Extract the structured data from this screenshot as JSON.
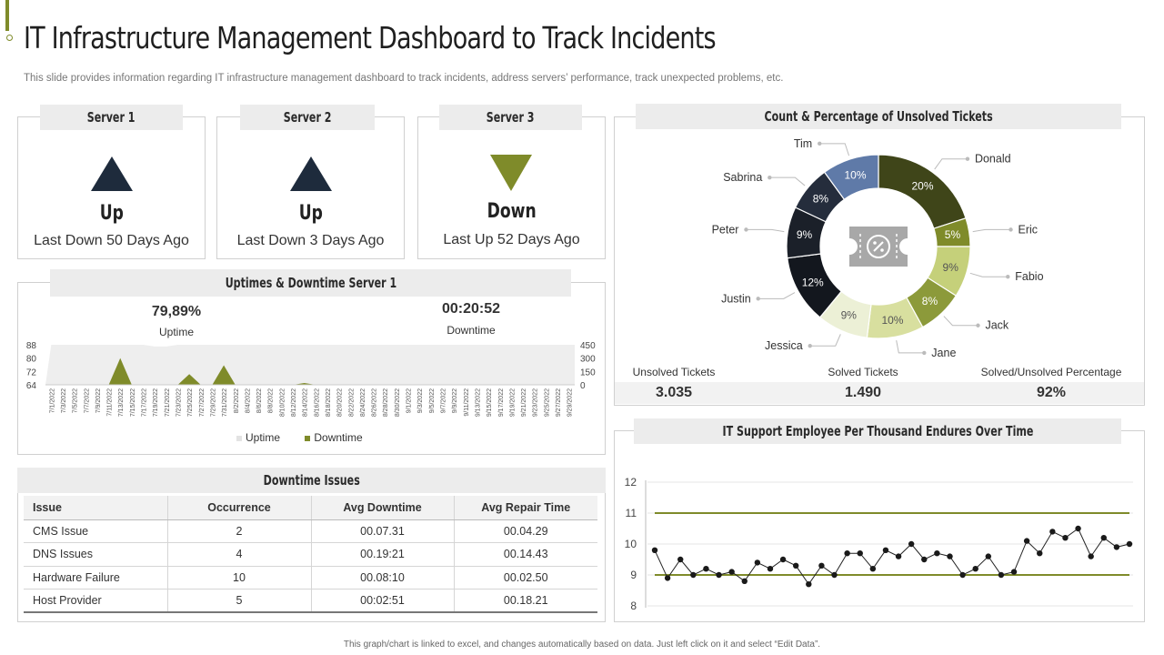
{
  "header": {
    "title": "IT Infrastructure Management Dashboard to Track Incidents",
    "subtitle": "This slide provides information regarding IT infrastructure management dashboard to track incidents, address servers’ performance, track unexpected problems, etc."
  },
  "servers": [
    {
      "name": "Server 1",
      "status": "Up",
      "last": "Last Down 50 Days Ago",
      "arrow": "up-triangle-icon",
      "color": "#1e2b3c"
    },
    {
      "name": "Server 2",
      "status": "Up",
      "last": "Last Down 3 Days Ago",
      "arrow": "up-triangle-icon",
      "color": "#1e2b3c"
    },
    {
      "name": "Server 3",
      "status": "Down",
      "last": "Last Up 52 Days Ago",
      "arrow": "down-triangle-icon",
      "color": "#7f8b2a"
    }
  ],
  "uptime_panel": {
    "title": "Uptimes & Downtime Server 1",
    "uptime_value": "79,89%",
    "uptime_label": "Uptime",
    "downtime_value": "00:20:52",
    "downtime_label": "Downtime",
    "legend_uptime": "Uptime",
    "legend_downtime": "Downtime"
  },
  "issues_panel": {
    "title": "Downtime Issues",
    "columns": [
      "Issue",
      "Occurrence",
      "Avg Downtime",
      "Avg Repair Time"
    ],
    "rows": [
      [
        "CMS Issue",
        "2",
        "00.07.31",
        "00.04.29"
      ],
      [
        "DNS Issues",
        "4",
        "00.19:21",
        "00.14.43"
      ],
      [
        "Hardware  Failure",
        "10",
        "00.08:10",
        "00.02.50"
      ],
      [
        "Host Provider",
        "5",
        "00:02:51",
        "00.18.21"
      ]
    ]
  },
  "tickets_panel": {
    "title": "Count & Percentage  of Unsolved Tickets",
    "unsolved_label": "Unsolved Tickets",
    "unsolved_value": "3.035",
    "solved_label": "Solved Tickets",
    "solved_value": "1.490",
    "ratio_label": "Solved/Unsolved  Percentage",
    "ratio_value": "92%",
    "center_icon": "ticket-percent-icon"
  },
  "support_panel": {
    "title": "IT Support  Employee  Per Thousand  Endures  Over Time"
  },
  "footnote": "This graph/chart is linked to excel, and changes automatically based on data. Just left click on it and select “Edit Data”.",
  "colors": {
    "accent": "#7f8b2a",
    "navy": "#1e2b3c",
    "tab_bg": "#ececec"
  },
  "chart_data": [
    {
      "type": "area",
      "name": "uptime-downtime-server-1",
      "title": "Uptimes & Downtime Server 1",
      "categories": [
        "7/1/2022",
        "7/3/2022",
        "7/5/2022",
        "7/7/2022",
        "7/9/2022",
        "7/11/2022",
        "7/13/2022",
        "7/15/2022",
        "7/17/2022",
        "7/19/2022",
        "7/21/2022",
        "7/23/2022",
        "7/25/2022",
        "7/27/2022",
        "7/29/2022",
        "7/31/2022",
        "8/2/2022",
        "8/4/2022",
        "8/6/2022",
        "8/8/2022",
        "8/10/2022",
        "8/12/2022",
        "8/14/2022",
        "8/16/2022",
        "8/18/2022",
        "8/20/2022",
        "8/22/2022",
        "8/24/2022",
        "8/26/2022",
        "8/28/2022",
        "8/30/2022",
        "9/1/2022",
        "9/3/2022",
        "9/5/2022",
        "9/7/2022",
        "9/9/2022",
        "9/11/2022",
        "9/13/2022",
        "9/15/2022",
        "9/17/2022",
        "9/19/2022",
        "9/21/2022",
        "9/23/2022",
        "9/25/2022",
        "9/27/2022",
        "9/29/2022"
      ],
      "y_left_ticks": [
        64,
        72,
        80,
        88
      ],
      "y_right_ticks": [
        0,
        150,
        300,
        450
      ],
      "series": [
        {
          "name": "Uptime",
          "axis": "left",
          "color": "#eeeeee",
          "values": [
            88,
            88,
            88,
            88,
            88,
            88,
            88,
            88,
            88,
            87,
            87,
            88,
            88,
            88,
            88,
            88,
            88,
            88,
            88,
            88,
            88,
            88,
            88,
            88,
            88,
            88,
            88,
            88,
            88,
            88,
            88,
            88,
            88,
            88,
            88,
            88,
            88,
            88,
            88,
            88,
            88,
            88,
            88,
            88,
            88,
            88
          ]
        },
        {
          "name": "Downtime",
          "axis": "right",
          "color": "#7f8b2a",
          "values": [
            0,
            0,
            0,
            0,
            0,
            0,
            300,
            0,
            0,
            0,
            0,
            0,
            120,
            0,
            0,
            220,
            0,
            0,
            0,
            0,
            0,
            0,
            20,
            0,
            0,
            0,
            0,
            0,
            0,
            0,
            0,
            0,
            0,
            0,
            0,
            0,
            0,
            0,
            0,
            0,
            0,
            0,
            0,
            0,
            0,
            0
          ]
        }
      ]
    },
    {
      "type": "pie",
      "name": "unsolved-tickets-donut",
      "title": "Count & Percentage  of Unsolved Tickets",
      "slices": [
        {
          "label": "Donald",
          "value": 20,
          "text": "20%",
          "color": "#3f4519"
        },
        {
          "label": "Eric",
          "value": 5,
          "text": "5%",
          "color": "#7f8b2a"
        },
        {
          "label": "Fabio",
          "value": 9,
          "text": "9%",
          "color": "#c5d07a"
        },
        {
          "label": "Jack",
          "value": 8,
          "text": "8%",
          "color": "#8c9a3a"
        },
        {
          "label": "Jane",
          "value": 10,
          "text": "10%",
          "color": "#d8df9f"
        },
        {
          "label": "Jessica",
          "value": 9,
          "text": "9%",
          "color": "#ecf0d6"
        },
        {
          "label": "Justin",
          "value": 12,
          "text": "12%",
          "color": "#13171e"
        },
        {
          "label": "Peter",
          "value": 9,
          "text": "9%",
          "color": "#1b2029"
        },
        {
          "label": "Sabrina",
          "value": 8,
          "text": "8%",
          "color": "#252d3c"
        },
        {
          "label": "Tim",
          "value": 10,
          "text": "10%",
          "color": "#5f7aa8"
        }
      ]
    },
    {
      "type": "line",
      "name": "it-support-per-thousand",
      "title": "IT Support  Employee  Per Thousand  Endures  Over Time",
      "ylim": [
        8,
        12
      ],
      "y_ticks": [
        8,
        9,
        10,
        11,
        12
      ],
      "reference_lines": [
        11,
        9
      ],
      "series": [
        {
          "name": "",
          "color": "#222222",
          "values": [
            9.8,
            8.9,
            9.5,
            9.0,
            9.2,
            9.0,
            9.1,
            8.8,
            9.4,
            9.2,
            9.5,
            9.3,
            8.7,
            9.3,
            9.0,
            9.7,
            9.7,
            9.2,
            9.8,
            9.6,
            10.0,
            9.5,
            9.7,
            9.6,
            9.0,
            9.2,
            9.6,
            9.0,
            9.1,
            10.1,
            9.7,
            10.4,
            10.2,
            10.5,
            9.6,
            10.2,
            9.9,
            10.0
          ]
        }
      ]
    }
  ]
}
